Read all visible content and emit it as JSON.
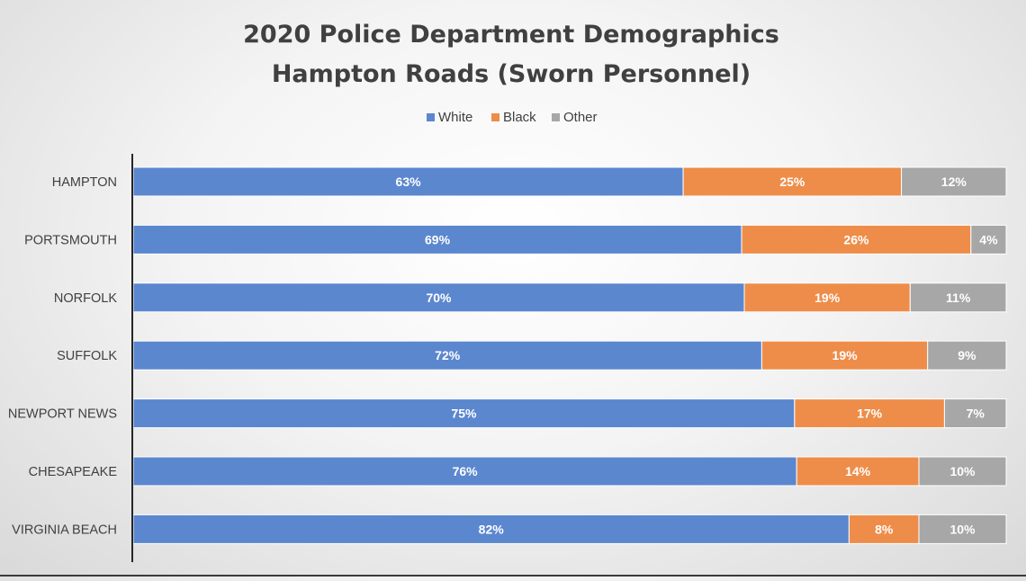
{
  "chart_data": {
    "type": "bar",
    "orientation": "horizontal",
    "stacked": true,
    "title": "2020 Police Department Demographics",
    "subtitle": "Hampton Roads (Sworn Personnel)",
    "categories": [
      "HAMPTON",
      "PORTSMOUTH",
      "NORFOLK",
      "SUFFOLK",
      "NEWPORT NEWS",
      "CHESAPEAKE",
      "VIRGINIA BEACH"
    ],
    "series": [
      {
        "name": "White",
        "color": "#5b87cf",
        "values": [
          63,
          69,
          70,
          72,
          75,
          76,
          82
        ],
        "labels": [
          "63%",
          "69%",
          "70%",
          "72%",
          "75%",
          "76%",
          "82%"
        ]
      },
      {
        "name": "Black",
        "color": "#ee8d49",
        "values": [
          25,
          26,
          19,
          19,
          17,
          14,
          8
        ],
        "labels": [
          "25%",
          "26%",
          "19%",
          "19%",
          "17%",
          "14%",
          "8%"
        ]
      },
      {
        "name": "Other",
        "color": "#a7a7a7",
        "values": [
          12,
          4,
          11,
          9,
          7,
          10,
          10
        ],
        "labels": [
          "12%",
          "4%",
          "11%",
          "9%",
          "7%",
          "10%",
          "10%"
        ]
      }
    ],
    "xlim": [
      0,
      100
    ],
    "legend_position": "top",
    "grid": false,
    "data_labels": true
  }
}
